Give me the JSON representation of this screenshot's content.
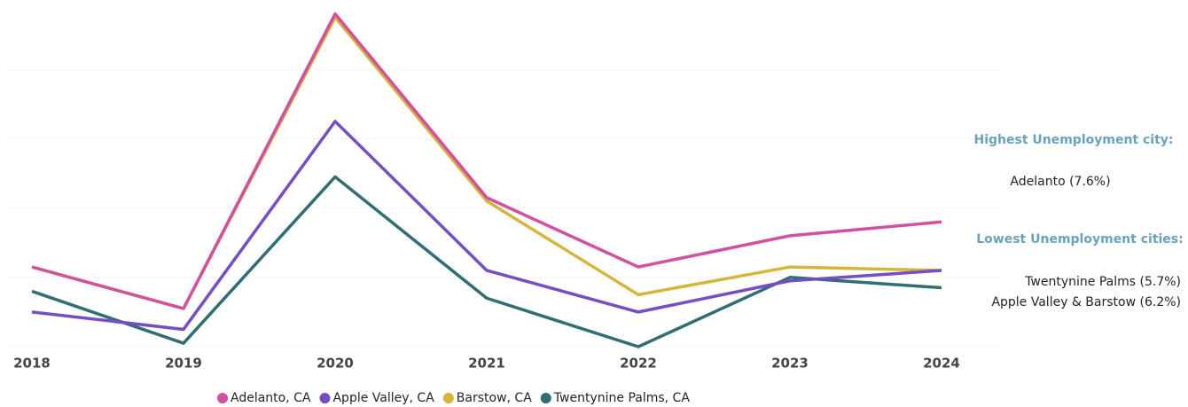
{
  "chart_data": {
    "type": "line",
    "categories": [
      "2018",
      "2019",
      "2020",
      "2021",
      "2022",
      "2023",
      "2024"
    ],
    "series": [
      {
        "name": "Adelanto, CA",
        "color": "#d1509f",
        "values": [
          6.3,
          5.1,
          13.6,
          8.3,
          6.3,
          7.2,
          7.6
        ]
      },
      {
        "name": "Apple Valley, CA",
        "color": "#744ec2",
        "values": [
          5.0,
          4.5,
          10.5,
          6.2,
          5.0,
          5.9,
          6.2
        ]
      },
      {
        "name": "Barstow, CA",
        "color": "#d5b63c",
        "values": [
          6.3,
          5.1,
          13.5,
          8.2,
          5.5,
          6.3,
          6.2
        ]
      },
      {
        "name": "Twentynine Palms, CA",
        "color": "#2f6f73",
        "values": [
          5.6,
          4.1,
          8.9,
          5.4,
          4.0,
          6.0,
          5.7
        ]
      }
    ],
    "ylim": [
      4,
      14
    ],
    "yticks": [
      4,
      6,
      8,
      10,
      12
    ],
    "grid": true,
    "legend": "bottom",
    "annotations": [
      {
        "heading": "Highest Unemployment city:",
        "lines": [
          "Adelanto (7.6%)"
        ]
      },
      {
        "heading": "Lowest Unemployment cities:",
        "lines": [
          "Twentynine Palms (5.7%)",
          "Apple Valley & Barstow (6.2%)"
        ]
      }
    ]
  }
}
